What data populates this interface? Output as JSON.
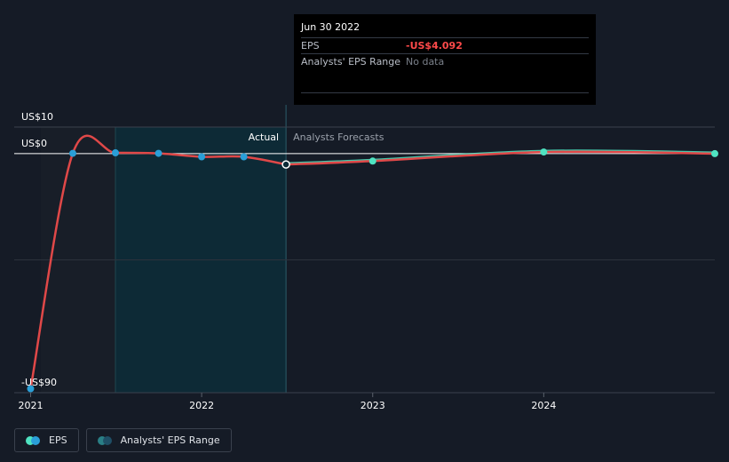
{
  "chart_data": {
    "type": "line",
    "x": [
      "2021-01-01",
      "2021-04-01",
      "2021-07-01",
      "2021-10-01",
      "2022-01-01",
      "2022-04-01",
      "2022-06-30"
    ],
    "series": [
      {
        "name": "EPS",
        "values": [
          -88.5,
          0.1,
          0.3,
          0.1,
          -1.2,
          -1.2,
          -4.092
        ],
        "color": "#2a9fd8"
      },
      {
        "name": "EPS forecast",
        "x": [
          "2022-06-30",
          "2023-01-01",
          "2024-01-01",
          "2024-12-31"
        ],
        "values": [
          -4.092,
          -2.8,
          0.6,
          0.0
        ],
        "color": "#4fe3c1"
      }
    ],
    "ylim": [
      -90,
      10
    ],
    "y_ticks": [
      {
        "value": 10,
        "label": "US$10"
      },
      {
        "value": 0,
        "label": "US$0"
      },
      {
        "value": -90,
        "label": "-US$90"
      }
    ],
    "x_ticks": [
      {
        "date": "2021-01-01",
        "label": "2021"
      },
      {
        "date": "2022-01-01",
        "label": "2022"
      },
      {
        "date": "2023-01-01",
        "label": "2023"
      },
      {
        "date": "2024-01-01",
        "label": "2024"
      }
    ],
    "xlim": [
      "2020-11-27",
      "2024-12-31"
    ],
    "actual_label": "Actual",
    "forecast_label": "Analysts Forecasts",
    "actual_region_start": "2021-07-01",
    "divider_date": "2022-06-30",
    "line_color": "#e04848",
    "grid": true
  },
  "tooltip": {
    "date": "Jun 30 2022",
    "eps_label": "EPS",
    "eps_value": "-US$4.092",
    "range_label": "Analysts' EPS Range",
    "range_value": "No data"
  },
  "legend": {
    "eps_label": "EPS",
    "range_label": "Analysts' EPS Range",
    "eps_colors": [
      "#4fe3c1",
      "#2a9fd8"
    ],
    "range_colors": [
      "#2a7f86",
      "#1f4f66"
    ]
  }
}
